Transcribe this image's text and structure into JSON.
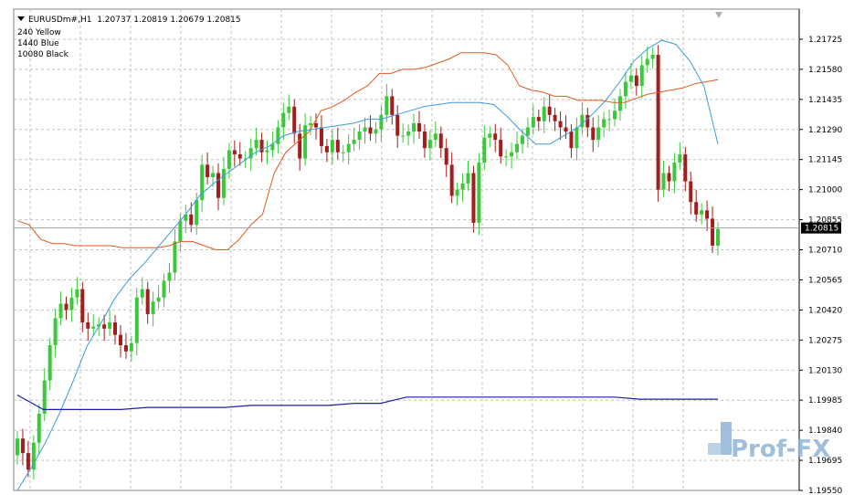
{
  "header": {
    "symbol": "EURUSDm#",
    "timeframe": "H1",
    "ohlc": "1.20737 1.20819 1.20679 1.20815"
  },
  "legend": [
    "240 Yellow",
    "1440 Blue",
    "10080 Black"
  ],
  "watermark": "Prof-FX",
  "colors": {
    "background": "#ffffff",
    "grid": "#c0c0c0",
    "bull_candle": "#3cc83c",
    "bear_candle": "#a01e1e",
    "band_240": "#e25a1c",
    "band_1440": "#3d9bdc",
    "ma_10080": "#1e1eaa",
    "last_price_label": "#000000"
  },
  "chart_data": {
    "type": "candlestick",
    "symbol": "EURUSDm#",
    "timeframe": "H1",
    "ylim": [
      1.1955,
      1.2187
    ],
    "y_ticks": [
      "1.21725",
      "1.21580",
      "1.21435",
      "1.21290",
      "1.21145",
      "1.21000",
      "1.20855",
      "1.20710",
      "1.20565",
      "1.20420",
      "1.20275",
      "1.20130",
      "1.19985",
      "1.19840",
      "1.19695",
      "1.19550"
    ],
    "last_price": "1.20815",
    "grid": true,
    "candle_count": 130,
    "closes": [
      1.198,
      1.1973,
      1.1965,
      1.1978,
      1.1992,
      1.2008,
      1.2025,
      1.2038,
      1.2045,
      1.2042,
      1.2048,
      1.2052,
      1.2036,
      1.2033,
      1.2034,
      1.2035,
      1.2033,
      1.2036,
      1.203,
      1.2025,
      1.2022,
      1.2026,
      1.2048,
      1.2052,
      1.204,
      1.2046,
      1.2048,
      1.2056,
      1.206,
      1.2075,
      1.2085,
      1.2088,
      1.2083,
      1.2095,
      1.2112,
      1.2106,
      1.2108,
      1.2096,
      1.211,
      1.2119,
      1.2117,
      1.2115,
      1.2115,
      1.212,
      1.2124,
      1.2118,
      1.2119,
      1.2122,
      1.213,
      1.2137,
      1.214,
      1.2127,
      1.2115,
      1.2131,
      1.2132,
      1.213,
      1.2121,
      1.2118,
      1.2124,
      1.2118,
      1.2118,
      1.2122,
      1.2124,
      1.2128,
      1.213,
      1.2127,
      1.2129,
      1.2136,
      1.2145,
      1.2136,
      1.2126,
      1.2126,
      1.2128,
      1.2132,
      1.2128,
      1.212,
      1.2124,
      1.2127,
      1.212,
      1.2112,
      1.2097,
      1.21,
      1.2103,
      1.2108,
      1.2084,
      1.2113,
      1.2125,
      1.2127,
      1.2124,
      1.2116,
      1.2116,
      1.2118,
      1.2122,
      1.2126,
      1.213,
      1.2135,
      1.2133,
      1.214,
      1.2136,
      1.2133,
      1.213,
      1.2128,
      1.212,
      1.213,
      1.2136,
      1.213,
      1.2124,
      1.213,
      1.2134,
      1.2134,
      1.2138,
      1.2145,
      1.2152,
      1.2155,
      1.215,
      1.216,
      1.2163,
      1.2165,
      1.21,
      1.2108,
      1.2104,
      1.2113,
      1.2117,
      1.2104,
      1.2094,
      1.2088,
      1.209,
      1.2086,
      1.2073,
      1.2081
    ],
    "series": [
      {
        "name": "240 Yellow",
        "values": [
          1.2085,
          1.2083,
          1.2076,
          1.2074,
          1.2074,
          1.2073,
          1.2073,
          1.2073,
          1.2073,
          1.2072,
          1.2072,
          1.2072,
          1.2072,
          1.2073,
          1.2075,
          1.2075,
          1.2073,
          1.2071,
          1.2071,
          1.2076,
          1.2083,
          1.2088,
          1.2108,
          1.2118,
          1.2123,
          1.2128,
          1.2138,
          1.214,
          1.2143,
          1.2147,
          1.215,
          1.2156,
          1.2156,
          1.2158,
          1.2158,
          1.2159,
          1.2161,
          1.2163,
          1.2166,
          1.2166,
          1.2166,
          1.2165,
          1.216,
          1.215,
          1.2148,
          1.2147,
          1.2145,
          1.2145,
          1.2143,
          1.2143,
          1.2143,
          1.2142,
          1.2142,
          1.2144,
          1.2146,
          1.2147,
          1.2148,
          1.2149,
          1.2151,
          1.2152,
          1.2153
        ]
      },
      {
        "name": "1440 Blue",
        "values": [
          1.1955,
          1.1966,
          1.1978,
          1.1992,
          1.2008,
          1.2025,
          1.2036,
          1.2048,
          1.2057,
          1.2064,
          1.2072,
          1.208,
          1.2088,
          1.2097,
          1.2103,
          1.2108,
          1.2113,
          1.2118,
          1.2121,
          1.2126,
          1.2128,
          1.2129,
          1.213,
          1.2131,
          1.2132,
          1.2134,
          1.2134,
          1.2136,
          1.2138,
          1.214,
          1.2141,
          1.2142,
          1.2142,
          1.2142,
          1.2141,
          1.2135,
          1.2128,
          1.2122,
          1.2122,
          1.2126,
          1.213,
          1.2136,
          1.2143,
          1.2152,
          1.2162,
          1.2168,
          1.2172,
          1.217,
          1.2162,
          1.215,
          1.2122
        ]
      },
      {
        "name": "10080 Black",
        "values": [
          1.2001,
          1.1994,
          1.1994,
          1.1994,
          1.1994,
          1.1995,
          1.1995,
          1.1995,
          1.1995,
          1.1996,
          1.1996,
          1.1996,
          1.1996,
          1.1997,
          1.1997,
          1.2,
          1.2,
          1.2,
          1.2,
          1.2,
          1.2,
          1.2,
          1.2,
          1.2,
          1.1999,
          1.1999,
          1.1999,
          1.1999
        ]
      }
    ]
  }
}
